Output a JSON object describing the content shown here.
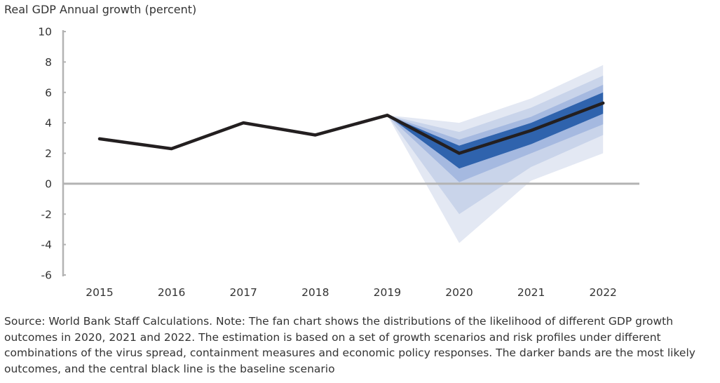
{
  "chart_data": {
    "type": "line",
    "title": "",
    "ylabel": "Real GDP Annual growth (percent)",
    "xlabel": "",
    "ylim": [
      -6,
      10
    ],
    "yticks": [
      10,
      8,
      6,
      4,
      2,
      0,
      -2,
      -4,
      -6
    ],
    "categories": [
      "2015",
      "2016",
      "2017",
      "2018",
      "2019",
      "2020",
      "2021",
      "2022"
    ],
    "series": [
      {
        "name": "",
        "values": [
          2.95,
          2.3,
          4.0,
          3.2,
          4.5,
          2.0,
          3.5,
          5.3
        ]
      }
    ],
    "fan": {
      "start": "2019",
      "start_value": 4.5,
      "years": [
        "2020",
        "2021",
        "2022"
      ],
      "bands": [
        {
          "level": "outer",
          "color": "#e3e8f3",
          "low": [
            -3.9,
            0.2,
            2.0
          ],
          "high": [
            4.0,
            5.6,
            7.8
          ]
        },
        {
          "level": "middle-outer",
          "color": "#c9d4ea",
          "low": [
            -2.0,
            1.1,
            3.2
          ],
          "high": [
            3.4,
            5.0,
            7.1
          ]
        },
        {
          "level": "middle",
          "color": "#a5b9e0",
          "low": [
            0.1,
            2.0,
            3.9
          ],
          "high": [
            2.9,
            4.4,
            6.5
          ]
        },
        {
          "level": "inner",
          "color": "#2f63ad",
          "low": [
            1.0,
            2.6,
            4.6
          ],
          "high": [
            2.5,
            4.0,
            6.0
          ]
        }
      ]
    },
    "colors": {
      "baseline": "#231f20",
      "axis": "#b3b3b3",
      "zero_line": "#b3b3b3"
    }
  },
  "note": "Source: World Bank Staff Calculations.  Note: The fan chart shows the distributions of the likelihood of different GDP growth outcomes in 2020, 2021 and 2022. The estimation is based on a set of growth scenarios and risk profiles under different combinations of the virus spread, containment measures and economic policy responses. The darker bands are the most likely outcomes, and the central black line is the baseline scenario"
}
